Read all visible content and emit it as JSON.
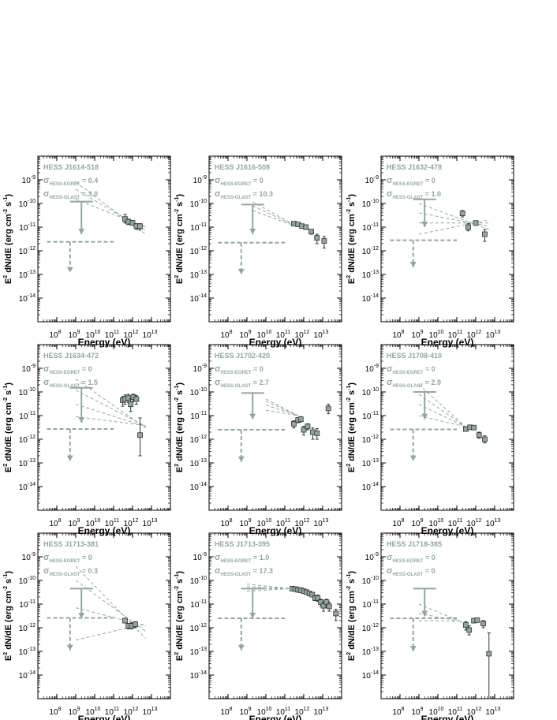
{
  "figure": {
    "xlabel": "Energy (eV)",
    "ylabel": "E2 dN/dE (erg cm-2 s-1)",
    "sigma_labels": {
      "egret": "HESS-EGRET",
      "glast": "HESS-GLAST"
    }
  },
  "colors": {
    "model": "#8fa89f",
    "data": "#333333",
    "frame": "#000000"
  },
  "chart_data": [
    {
      "type": "scatter",
      "source": "HESS J1614-518",
      "sigma_egret": "0.4",
      "sigma_glast": "3.0",
      "xlim": [
        10000000.0,
        100000000000000.0
      ],
      "ylim": [
        1e-15,
        1e-08
      ],
      "xscale": "log",
      "yscale": "log",
      "egret_upper_limit": {
        "x": 2000000000.0,
        "x_range": [
          500000000.0,
          8000000000.0
        ],
        "y_from": 1.2e-10,
        "y_to": 5e-12
      },
      "glast_upper_limit": {
        "x": 500000000.0,
        "x_range": [
          30000000.0,
          100000000000.0
        ],
        "y_from": 2.4e-12,
        "y_to": 1.2e-13
      },
      "butterfly": [
        {
          "x0": 1000000000.0,
          "y0": 8e-10,
          "x1": 5000000000000.0,
          "y1": 5e-12
        },
        {
          "x0": 1000000000.0,
          "y0": 4e-10,
          "x1": 5000000000000.0,
          "y1": 7e-12
        },
        {
          "x0": 1000000000.0,
          "y0": 1.5e-10,
          "x1": 5000000000000.0,
          "y1": 1e-11
        }
      ],
      "points": [
        {
          "x": 400000000000.0,
          "y": 2.2e-11,
          "lo": 1.5e-11,
          "hi": 3.5e-11
        },
        {
          "x": 600000000000.0,
          "y": 1.7e-11,
          "lo": 1.3e-11,
          "hi": 2.2e-11
        },
        {
          "x": 1000000000000.0,
          "y": 1.5e-11,
          "lo": 1.2e-11,
          "hi": 1.9e-11
        },
        {
          "x": 1600000000000.0,
          "y": 1.1e-11,
          "lo": 8e-12,
          "hi": 1.4e-11
        },
        {
          "x": 2500000000000.0,
          "y": 1.1e-11,
          "lo": 7.5e-12,
          "hi": 1.4e-11
        }
      ]
    },
    {
      "type": "scatter",
      "source": "HESS J1616-508",
      "sigma_egret": "0",
      "sigma_glast": "10.3",
      "xlim": [
        10000000.0,
        100000000000000.0
      ],
      "ylim": [
        1e-15,
        1e-08
      ],
      "xscale": "log",
      "yscale": "log",
      "egret_upper_limit": {
        "x": 2000000000.0,
        "x_range": [
          500000000.0,
          8000000000.0
        ],
        "y_from": 9e-11,
        "y_to": 5e-12
      },
      "glast_upper_limit": {
        "x": 500000000.0,
        "x_range": [
          30000000.0,
          100000000000.0
        ],
        "y_from": 2.2e-12,
        "y_to": 1e-13
      },
      "butterfly": [
        {
          "x0": 2000000000.0,
          "y0": 1.2e-10,
          "x1": 200000000000.0,
          "y1": 1.5e-11
        },
        {
          "x0": 2000000000.0,
          "y0": 8e-11,
          "x1": 200000000000.0,
          "y1": 1.4e-11
        },
        {
          "x0": 2000000000.0,
          "y0": 5e-11,
          "x1": 200000000000.0,
          "y1": 1.3e-11
        }
      ],
      "points": [
        {
          "x": 300000000000.0,
          "y": 1.4e-11,
          "lo": 1.2e-11,
          "hi": 1.6e-11
        },
        {
          "x": 500000000000.0,
          "y": 1.3e-11,
          "lo": 1.1e-11,
          "hi": 1.5e-11
        },
        {
          "x": 800000000000.0,
          "y": 1.1e-11,
          "lo": 9e-12,
          "hi": 1.3e-11
        },
        {
          "x": 1300000000000.0,
          "y": 1e-11,
          "lo": 8e-12,
          "hi": 1.2e-11
        },
        {
          "x": 2500000000000.0,
          "y": 6.5e-12,
          "lo": 5e-12,
          "hi": 8e-12
        },
        {
          "x": 5000000000000.0,
          "y": 3.5e-12,
          "lo": 2e-12,
          "hi": 5e-12
        },
        {
          "x": 12000000000000.0,
          "y": 2.6e-12,
          "lo": 1.3e-12,
          "hi": 4e-12
        }
      ]
    },
    {
      "type": "scatter",
      "source": "HESS J1632-478",
      "sigma_egret": "0",
      "sigma_glast": "1.0",
      "xlim": [
        10000000.0,
        100000000000000.0
      ],
      "ylim": [
        1e-15,
        1e-08
      ],
      "xscale": "log",
      "yscale": "log",
      "egret_upper_limit": {
        "x": 2000000000.0,
        "x_range": [
          500000000.0,
          8000000000.0
        ],
        "y_from": 1.5e-10,
        "y_to": 1e-11
      },
      "glast_upper_limit": {
        "x": 500000000.0,
        "x_range": [
          30000000.0,
          100000000000.0
        ],
        "y_from": 2.8e-12,
        "y_to": 2e-13
      },
      "butterfly": [
        {
          "x0": 1000000000.0,
          "y0": 5e-12,
          "x1": 5000000000000.0,
          "y1": 2e-11
        },
        {
          "x0": 1000000000.0,
          "y0": 1.5e-11,
          "x1": 5000000000000.0,
          "y1": 1.5e-11
        },
        {
          "x0": 1000000000.0,
          "y0": 4e-11,
          "x1": 5000000000000.0,
          "y1": 1.1e-11
        },
        {
          "x0": 1000000000.0,
          "y0": 1e-10,
          "x1": 5000000000000.0,
          "y1": 8e-12
        }
      ],
      "points": [
        {
          "x": 200000000000.0,
          "y": 3.8e-11,
          "lo": 2.7e-11,
          "hi": 5e-11
        },
        {
          "x": 400000000000.0,
          "y": 1e-11,
          "lo": 7e-12,
          "hi": 1.4e-11
        },
        {
          "x": 1000000000000.0,
          "y": 1.5e-11,
          "lo": 1.2e-11,
          "hi": 1.8e-11
        },
        {
          "x": 3000000000000.0,
          "y": 5e-12,
          "lo": 2.5e-12,
          "hi": 8e-12
        }
      ]
    },
    {
      "type": "scatter",
      "source": "HESS J1634-472",
      "sigma_egret": "0",
      "sigma_glast": "1.5",
      "xlim": [
        10000000.0,
        100000000000000.0
      ],
      "ylim": [
        1e-15,
        1e-08
      ],
      "xscale": "log",
      "yscale": "log",
      "egret_upper_limit": {
        "x": 2000000000.0,
        "x_range": [
          500000000.0,
          8000000000.0
        ],
        "y_from": 1.5e-10,
        "y_to": 5e-12
      },
      "glast_upper_limit": {
        "x": 500000000.0,
        "x_range": [
          30000000.0,
          100000000000.0
        ],
        "y_from": 2.7e-12,
        "y_to": 1.2e-13
      },
      "butterfly": [
        {
          "x0": 1000000000.0,
          "y0": 3.5e-10,
          "x1": 5000000000000.0,
          "y1": 3e-12
        },
        {
          "x0": 1000000000.0,
          "y0": 1.2e-10,
          "x1": 5000000000000.0,
          "y1": 3.5e-12
        },
        {
          "x0": 1000000000.0,
          "y0": 3e-11,
          "x1": 5000000000000.0,
          "y1": 3.5e-12
        },
        {
          "x0": 1000000000.0,
          "y0": 9e-12,
          "x1": 5000000000000.0,
          "y1": 3.8e-12
        }
      ],
      "points": [
        {
          "x": 300000000000.0,
          "y": 4.5e-11,
          "lo": 2.5e-11,
          "hi": 6.5e-11
        },
        {
          "x": 400000000000.0,
          "y": 5e-11,
          "lo": 3e-11,
          "hi": 7.5e-11
        },
        {
          "x": 600000000000.0,
          "y": 5.5e-11,
          "lo": 3.5e-11,
          "hi": 8e-11
        },
        {
          "x": 800000000000.0,
          "y": 3e-11,
          "lo": 1.5e-11,
          "hi": 5e-11
        },
        {
          "x": 1100000000000.0,
          "y": 6e-11,
          "lo": 4e-11,
          "hi": 8e-11
        },
        {
          "x": 1600000000000.0,
          "y": 5e-11,
          "lo": 3e-11,
          "hi": 7e-11
        },
        {
          "x": 2500000000000.0,
          "y": 1.5e-12,
          "lo": 2e-13,
          "hi": 8e-12
        }
      ]
    },
    {
      "type": "scatter",
      "source": "HESS J1702-420",
      "sigma_egret": "0",
      "sigma_glast": "2.7",
      "xlim": [
        10000000.0,
        100000000000000.0
      ],
      "ylim": [
        1e-15,
        1e-08
      ],
      "xscale": "log",
      "yscale": "log",
      "egret_upper_limit": {
        "x": 2000000000.0,
        "x_range": [
          500000000.0,
          8000000000.0
        ],
        "y_from": 9e-11,
        "y_to": 7e-12
      },
      "glast_upper_limit": {
        "x": 500000000.0,
        "x_range": [
          30000000.0,
          100000000000.0
        ],
        "y_from": 2.5e-12,
        "y_to": 1.1e-13
      },
      "butterfly": [
        {
          "x0": 10000000000.0,
          "y0": 5e-11,
          "x1": 500000000000.0,
          "y1": 1e-11
        },
        {
          "x0": 10000000000.0,
          "y0": 4e-11,
          "x1": 500000000000.0,
          "y1": 1e-11
        },
        {
          "x0": 10000000000.0,
          "y0": 2.8e-11,
          "x1": 500000000000.0,
          "y1": 1e-11
        },
        {
          "x0": 10000000000.0,
          "y0": 1.7e-11,
          "x1": 500000000000.0,
          "y1": 1e-11
        }
      ],
      "points": [
        {
          "x": 300000000000.0,
          "y": 4.5e-12,
          "lo": 3e-12,
          "hi": 6e-12
        },
        {
          "x": 500000000000.0,
          "y": 6.5e-12,
          "lo": 5e-12,
          "hi": 8e-12
        },
        {
          "x": 700000000000.0,
          "y": 7e-12,
          "lo": 5.5e-12,
          "hi": 9e-12
        },
        {
          "x": 1000000000000.0,
          "y": 2.5e-12,
          "lo": 1.5e-12,
          "hi": 3.5e-12
        },
        {
          "x": 1600000000000.0,
          "y": 3.5e-12,
          "lo": 2.5e-12,
          "hi": 4.5e-12
        },
        {
          "x": 3000000000000.0,
          "y": 2e-12,
          "lo": 1e-12,
          "hi": 3e-12
        },
        {
          "x": 5000000000000.0,
          "y": 1.8e-12,
          "lo": 1e-12,
          "hi": 2.8e-12
        },
        {
          "x": 20000000000000.0,
          "y": 2e-11,
          "lo": 1.2e-11,
          "hi": 3e-11
        }
      ]
    },
    {
      "type": "scatter",
      "source": "HESS J1708-410",
      "sigma_egret": "0",
      "sigma_glast": "2.9",
      "xlim": [
        10000000.0,
        100000000000000.0
      ],
      "ylim": [
        1e-15,
        1e-08
      ],
      "xscale": "log",
      "yscale": "log",
      "egret_upper_limit": {
        "x": 2000000000.0,
        "x_range": [
          500000000.0,
          8000000000.0
        ],
        "y_from": 1e-10,
        "y_to": 7e-12
      },
      "glast_upper_limit": {
        "x": 500000000.0,
        "x_range": [
          30000000.0,
          100000000000.0
        ],
        "y_from": 2.6e-12,
        "y_to": 1.2e-13
      },
      "butterfly": [
        {
          "x0": 1000000000.0,
          "y0": 2e-10,
          "x1": 300000000000.0,
          "y1": 3.3e-12
        },
        {
          "x0": 1000000000.0,
          "y0": 8e-11,
          "x1": 300000000000.0,
          "y1": 3.3e-12
        },
        {
          "x0": 1000000000.0,
          "y0": 3e-11,
          "x1": 300000000000.0,
          "y1": 3.3e-12
        },
        {
          "x0": 1000000000.0,
          "y0": 1e-11,
          "x1": 300000000000.0,
          "y1": 3.3e-12
        }
      ],
      "points": [
        {
          "x": 300000000000.0,
          "y": 2.7e-12,
          "lo": 2.2e-12,
          "hi": 3.2e-12
        },
        {
          "x": 500000000000.0,
          "y": 3.2e-12,
          "lo": 2.7e-12,
          "hi": 3.7e-12
        },
        {
          "x": 800000000000.0,
          "y": 3.1e-12,
          "lo": 2.6e-12,
          "hi": 3.6e-12
        },
        {
          "x": 1500000000000.0,
          "y": 1.5e-12,
          "lo": 1.1e-12,
          "hi": 2e-12
        },
        {
          "x": 3000000000000.0,
          "y": 1e-12,
          "lo": 7e-13,
          "hi": 1.4e-12
        }
      ]
    },
    {
      "type": "scatter",
      "source": "HESS J1713-381",
      "sigma_egret": "0",
      "sigma_glast": "0.3",
      "xlim": [
        10000000.0,
        100000000000000.0
      ],
      "ylim": [
        1e-15,
        1e-08
      ],
      "xscale": "log",
      "yscale": "log",
      "egret_upper_limit": {
        "x": 2000000000.0,
        "x_range": [
          500000000.0,
          8000000000.0
        ],
        "y_from": 4.5e-11,
        "y_to": 2.5e-12
      },
      "glast_upper_limit": {
        "x": 500000000.0,
        "x_range": [
          30000000.0,
          100000000000.0
        ],
        "y_from": 2.6e-12,
        "y_to": 1.1e-13
      },
      "butterfly": [
        {
          "x0": 1000000000.0,
          "y0": 4e-10,
          "x1": 5000000000000.0,
          "y1": 3.5e-13
        },
        {
          "x0": 1000000000.0,
          "y0": 1e-10,
          "x1": 5000000000000.0,
          "y1": 7e-13
        },
        {
          "x0": 1000000000.0,
          "y0": 7e-12,
          "x1": 5000000000000.0,
          "y1": 1.2e-12
        },
        {
          "x0": 1000000000.0,
          "y0": 3e-13,
          "x1": 5000000000000.0,
          "y1": 1.5e-12
        }
      ],
      "points": [
        {
          "x": 400000000000.0,
          "y": 2e-12,
          "lo": 1.6e-12,
          "hi": 2.4e-12
        },
        {
          "x": 600000000000.0,
          "y": 1.2e-12,
          "lo": 9e-13,
          "hi": 1.5e-12
        },
        {
          "x": 900000000000.0,
          "y": 1.2e-12,
          "lo": 9e-13,
          "hi": 1.6e-12
        },
        {
          "x": 1400000000000.0,
          "y": 1.4e-12,
          "lo": 1e-12,
          "hi": 1.8e-12
        }
      ]
    },
    {
      "type": "scatter",
      "source": "HESS J1713-395",
      "sigma_egret": "1.0",
      "sigma_glast": "17.3",
      "xlim": [
        10000000.0,
        100000000000000.0
      ],
      "ylim": [
        1e-15,
        1e-08
      ],
      "xscale": "log",
      "yscale": "log",
      "egret_upper_limit": {
        "x": 2000000000.0,
        "x_range": [
          500000000.0,
          8000000000.0
        ],
        "y_from": 4.5e-11,
        "y_to": 2.5e-12
      },
      "glast_upper_limit": {
        "x": 500000000.0,
        "x_range": [
          30000000.0,
          100000000000.0
        ],
        "y_from": 2.5e-12,
        "y_to": 1.1e-13
      },
      "butterfly": [
        {
          "x0": 1000000000.0,
          "y0": 7e-11,
          "x1": 200000000000.0,
          "y1": 4.5e-11
        },
        {
          "x0": 1000000000.0,
          "y0": 5.5e-11,
          "x1": 200000000000.0,
          "y1": 4.5e-11
        },
        {
          "x0": 1000000000.0,
          "y0": 4.3e-11,
          "x1": 200000000000.0,
          "y1": 4.5e-11
        },
        {
          "x0": 1000000000.0,
          "y0": 3.5e-11,
          "x1": 200000000000.0,
          "y1": 4.5e-11
        }
      ],
      "points": [
        {
          "x": 250000000000.0,
          "y": 4.5e-11,
          "lo": 4e-11,
          "hi": 5e-11
        },
        {
          "x": 350000000000.0,
          "y": 4.3e-11,
          "lo": 3.8e-11,
          "hi": 4.8e-11
        },
        {
          "x": 500000000000.0,
          "y": 4e-11,
          "lo": 3.5e-11,
          "hi": 4.5e-11
        },
        {
          "x": 700000000000.0,
          "y": 3.8e-11,
          "lo": 3.3e-11,
          "hi": 4.3e-11
        },
        {
          "x": 1000000000000.0,
          "y": 3.5e-11,
          "lo": 3e-11,
          "hi": 4e-11
        },
        {
          "x": 1400000000000.0,
          "y": 3.2e-11,
          "lo": 2.7e-11,
          "hi": 3.7e-11
        },
        {
          "x": 2000000000000.0,
          "y": 2.8e-11,
          "lo": 2.3e-11,
          "hi": 3.3e-11
        },
        {
          "x": 2800000000000.0,
          "y": 2.5e-11,
          "lo": 2e-11,
          "hi": 3e-11
        },
        {
          "x": 4000000000000.0,
          "y": 1.8e-11,
          "lo": 1.4e-11,
          "hi": 2.3e-11
        },
        {
          "x": 5500000000000.0,
          "y": 1.8e-11,
          "lo": 1.3e-11,
          "hi": 2.4e-11
        },
        {
          "x": 8000000000000.0,
          "y": 1.2e-11,
          "lo": 8e-12,
          "hi": 1.6e-11
        },
        {
          "x": 11000000000000.0,
          "y": 8.5e-12,
          "lo": 5e-12,
          "hi": 1.2e-11
        },
        {
          "x": 16000000000000.0,
          "y": 1.2e-11,
          "lo": 7e-12,
          "hi": 1.6e-11
        },
        {
          "x": 22000000000000.0,
          "y": 8e-12,
          "lo": 5e-12,
          "hi": 1.2e-11
        },
        {
          "x": 50000000000000.0,
          "y": 4e-12,
          "lo": 2e-12,
          "hi": 6e-12
        }
      ]
    },
    {
      "type": "scatter",
      "source": "HESS J1718-385",
      "sigma_egret": "0",
      "sigma_glast": "0",
      "xlim": [
        10000000.0,
        100000000000000.0
      ],
      "ylim": [
        1e-15,
        1e-08
      ],
      "xscale": "log",
      "yscale": "log",
      "egret_upper_limit": {
        "x": 2000000000.0,
        "x_range": [
          500000000.0,
          8000000000.0
        ],
        "y_from": 4.5e-11,
        "y_to": 3e-12
      },
      "glast_upper_limit": {
        "x": 500000000.0,
        "x_range": [
          30000000.0,
          100000000000.0
        ],
        "y_from": 2.5e-12,
        "y_to": 1e-13
      },
      "butterfly": [
        {
          "x0": 1000000000.0,
          "y0": 1e-11,
          "x1": 200000000000.0,
          "y1": 1.7e-12
        },
        {
          "x0": 1000000000.0,
          "y0": 4e-12,
          "x1": 200000000000.0,
          "y1": 1.8e-12
        },
        {
          "x0": 1000000000.0,
          "y0": 2e-12,
          "x1": 200000000000.0,
          "y1": 1.9e-12
        }
      ],
      "points": [
        {
          "x": 300000000000.0,
          "y": 1.3e-12,
          "lo": 8e-13,
          "hi": 1.8e-12
        },
        {
          "x": 450000000000.0,
          "y": 8e-13,
          "lo": 5e-13,
          "hi": 1.2e-12
        },
        {
          "x": 800000000000.0,
          "y": 2e-12,
          "lo": 1.6e-12,
          "hi": 2.4e-12
        },
        {
          "x": 1200000000000.0,
          "y": 2.1e-12,
          "lo": 1.7e-12,
          "hi": 2.5e-12
        },
        {
          "x": 2500000000000.0,
          "y": 1.5e-12,
          "lo": 1e-12,
          "hi": 2e-12
        },
        {
          "x": 5000000000000.0,
          "y": 8e-14,
          "lo": 1e-15,
          "hi": 6e-13
        }
      ]
    }
  ]
}
